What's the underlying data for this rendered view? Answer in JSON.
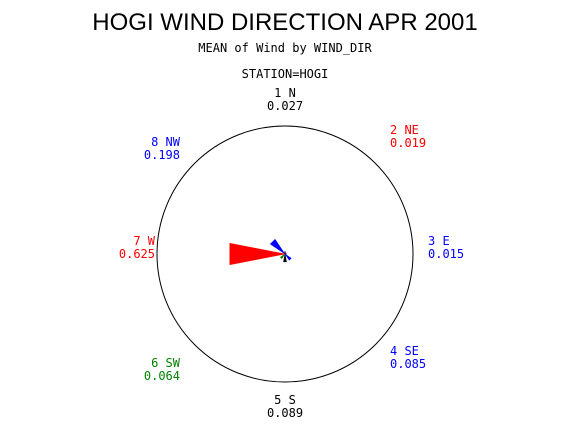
{
  "chart_data": {
    "type": "wind-rose",
    "title": "HOGI WIND DIRECTION APR 2001",
    "subtitle": "MEAN of Wind by WIND_DIR",
    "station_label": "STATION=HOGI",
    "directions": [
      {
        "label": "1 N",
        "value": 0.027,
        "angle_deg": 0,
        "color": "#000000"
      },
      {
        "label": "2 NE",
        "value": 0.019,
        "angle_deg": 45,
        "color": "#ff0000"
      },
      {
        "label": "3 E",
        "value": 0.015,
        "angle_deg": 90,
        "color": "#0000ff"
      },
      {
        "label": "4 SE",
        "value": 0.085,
        "angle_deg": 135,
        "color": "#0000ff"
      },
      {
        "label": "5 S",
        "value": 0.089,
        "angle_deg": 180,
        "color": "#000000"
      },
      {
        "label": "6 SW",
        "value": 0.064,
        "angle_deg": 225,
        "color": "#008000"
      },
      {
        "label": "7 W",
        "value": 0.625,
        "angle_deg": 270,
        "color": "#ff0000"
      },
      {
        "label": "8 NW",
        "value": 0.198,
        "angle_deg": 315,
        "color": "#0000ff"
      }
    ],
    "radial_max": 1.0
  }
}
